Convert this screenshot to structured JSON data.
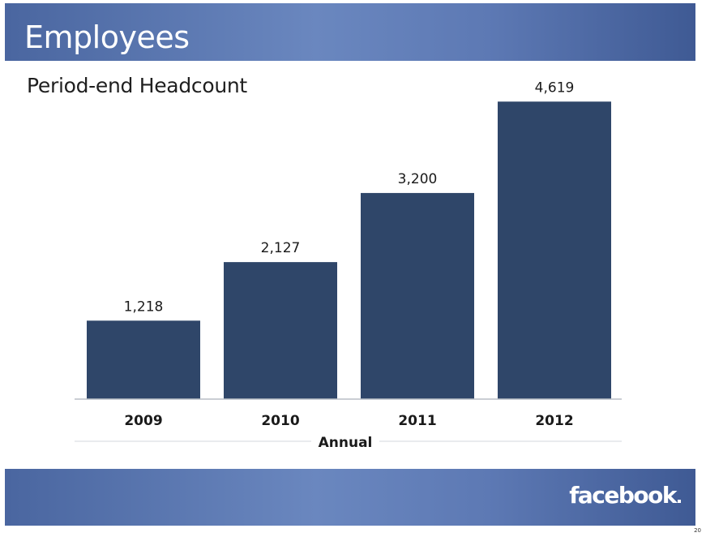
{
  "header": {
    "title": "Employees"
  },
  "subtitle": "Period-end Headcount",
  "footer": {
    "logo_text": "facebook",
    "page_number": "20"
  },
  "colors": {
    "band_blue": "#5a77b2",
    "bar": "#2f4669",
    "axis_line": "#b9bec6"
  },
  "chart_data": {
    "type": "bar",
    "title": "",
    "xlabel": "Annual",
    "ylabel": "",
    "categories": [
      "2009",
      "2010",
      "2011",
      "2012"
    ],
    "values": [
      1218,
      2127,
      3200,
      4619
    ],
    "data_labels": [
      "1,218",
      "2,127",
      "3,200",
      "4,619"
    ],
    "ylim": [
      0,
      5000
    ],
    "grid": false,
    "legend": "none"
  }
}
